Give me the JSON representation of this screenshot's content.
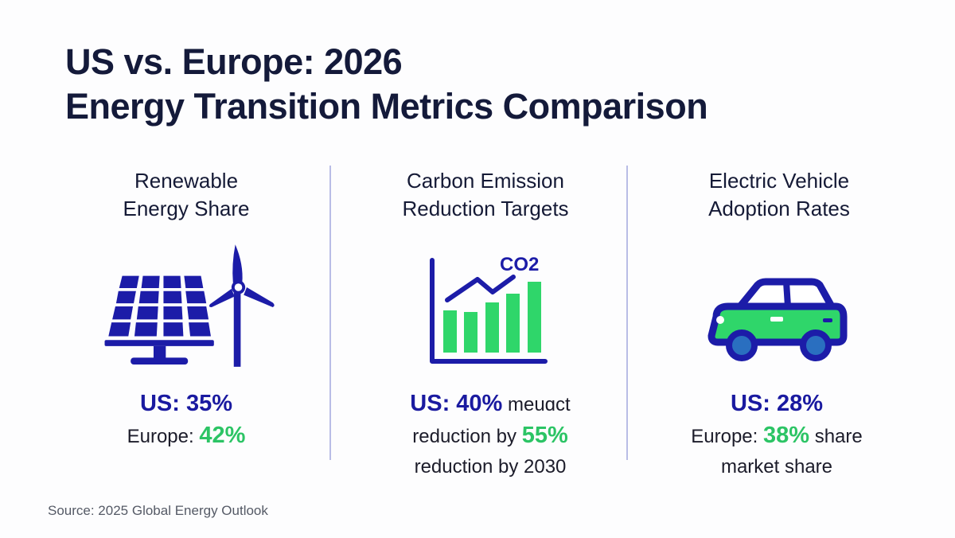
{
  "title": {
    "line1": "US vs. Europe: 2026",
    "line2": "Energy Transition Metrics Comparison"
  },
  "colors": {
    "title": "#141a3a",
    "us_blue": "#1a1aa0",
    "europe_green": "#2cc465",
    "icon_blue": "#1c1ca8",
    "icon_green": "#2fd66a"
  },
  "columns": [
    {
      "heading1": "Renewable",
      "heading2": "Energy Share",
      "icon": "solar-panel-wind-turbine-icon",
      "us_label": "US: 35%",
      "europe_prefix": "Europe: ",
      "europe_value": "42%"
    },
    {
      "heading1": "Carbon Emission",
      "heading2": "Reduction Targets",
      "icon": "co2-bar-chart-icon",
      "icon_text": "CO2",
      "us_label": "US: 40%",
      "us_suffix": " meuɑct",
      "line2_prefix": "reduction by ",
      "europe_value": "55%",
      "line3": "reduction by 2030"
    },
    {
      "heading1": "Electric Vehicle",
      "heading2": "Adoption Rates",
      "icon": "car-icon",
      "us_label": "US: 28%",
      "europe_prefix": "Europe: ",
      "europe_value": "38%",
      "europe_suffix": " share",
      "line3": "market share"
    }
  ],
  "source": "Source: 2025 Global Energy Outlook"
}
